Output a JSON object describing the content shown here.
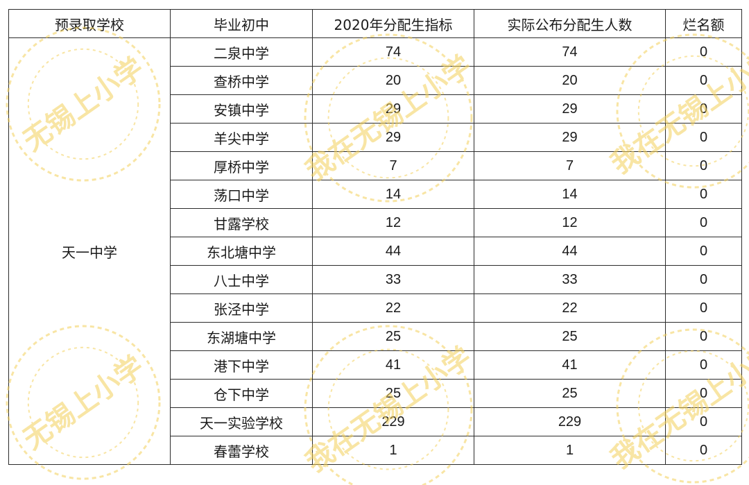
{
  "table": {
    "headers": [
      "预录取学校",
      "毕业初中",
      "2020年分配生指标",
      "实际公布分配生人数",
      "烂名额"
    ],
    "admitting_school": "天一中学",
    "rows": [
      {
        "school": "二泉中学",
        "quota": "74",
        "published": "74",
        "unused": "0"
      },
      {
        "school": "查桥中学",
        "quota": "20",
        "published": "20",
        "unused": "0"
      },
      {
        "school": "安镇中学",
        "quota": "29",
        "published": "29",
        "unused": "0"
      },
      {
        "school": "羊尖中学",
        "quota": "29",
        "published": "29",
        "unused": "0"
      },
      {
        "school": "厚桥中学",
        "quota": "7",
        "published": "7",
        "unused": "0"
      },
      {
        "school": "荡口中学",
        "quota": "14",
        "published": "14",
        "unused": "0"
      },
      {
        "school": "甘露学校",
        "quota": "12",
        "published": "12",
        "unused": "0"
      },
      {
        "school": "东北塘中学",
        "quota": "44",
        "published": "44",
        "unused": "0"
      },
      {
        "school": "八士中学",
        "quota": "33",
        "published": "33",
        "unused": "0"
      },
      {
        "school": "张泾中学",
        "quota": "22",
        "published": "22",
        "unused": "0"
      },
      {
        "school": "东湖塘中学",
        "quota": "25",
        "published": "25",
        "unused": "0"
      },
      {
        "school": "港下中学",
        "quota": "41",
        "published": "41",
        "unused": "0"
      },
      {
        "school": "仓下中学",
        "quota": "25",
        "published": "25",
        "unused": "0"
      },
      {
        "school": "天一实验学校",
        "quota": "229",
        "published": "229",
        "unused": "0"
      },
      {
        "school": "春蕾学校",
        "quota": "1",
        "published": "1",
        "unused": "0"
      }
    ]
  },
  "watermark": {
    "text_a": "我在无锡上小学",
    "text_b": "无锡上小学",
    "color": "#f3cf5a"
  }
}
